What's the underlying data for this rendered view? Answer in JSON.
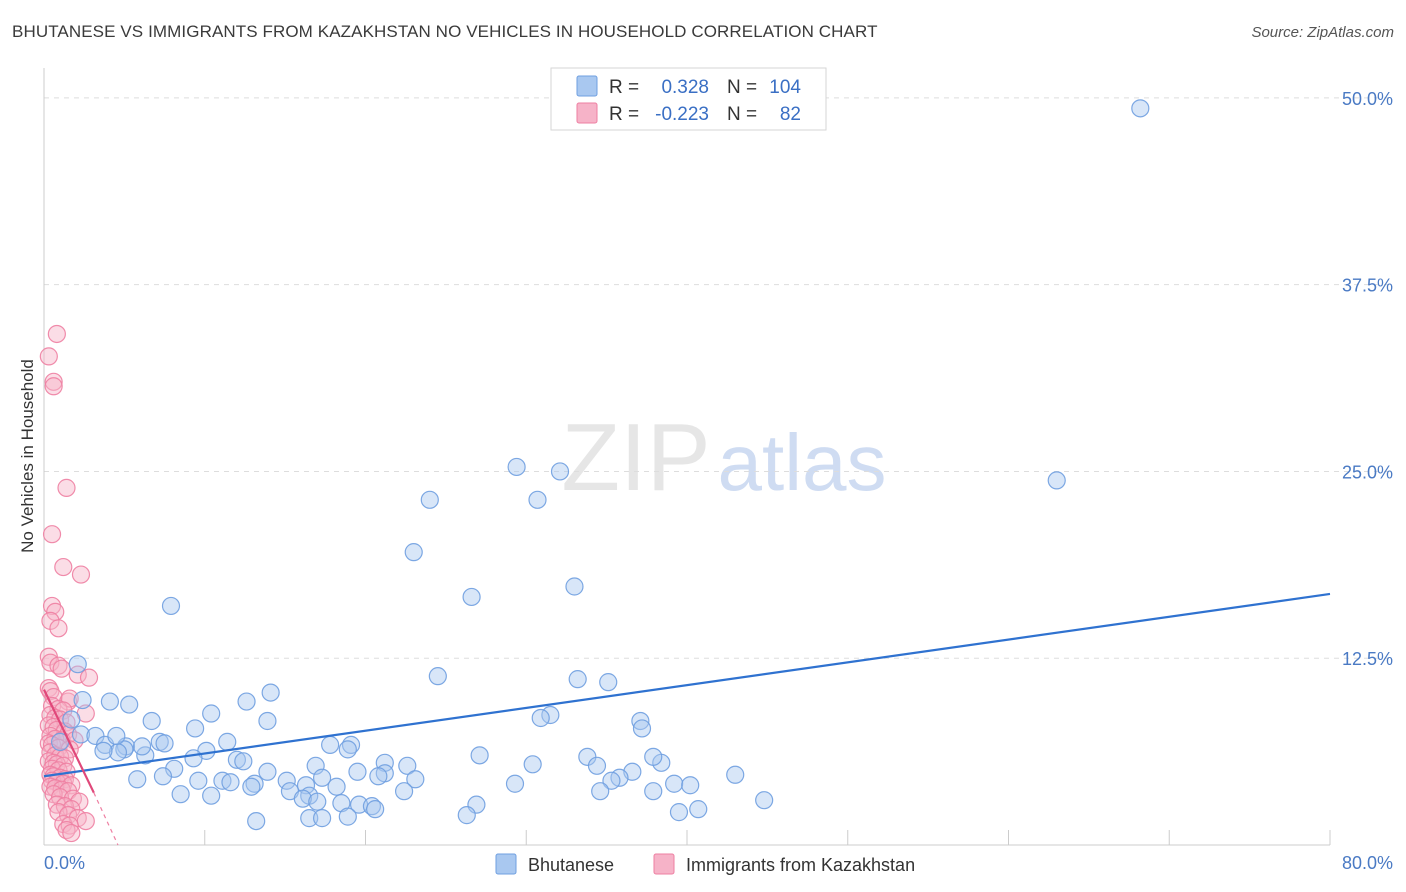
{
  "title": "BHUTANESE VS IMMIGRANTS FROM KAZAKHSTAN NO VEHICLES IN HOUSEHOLD CORRELATION CHART",
  "source": "Source: ZipAtlas.com",
  "watermark": {
    "zip": "ZIP",
    "atlas": "atlas"
  },
  "colors": {
    "blue_fill": "#a9c8f0",
    "blue_stroke": "#6f9fe0",
    "blue_line": "#2f72d0",
    "pink_fill": "#f6b3c8",
    "pink_stroke": "#ee7fa2",
    "pink_line": "#e0487a",
    "grid": "#dddddd",
    "tick_text": "#4a7ac4"
  },
  "legend": {
    "rows": [
      {
        "r_label": "R =",
        "r_value": "0.328",
        "n_label": "N =",
        "n_value": "104"
      },
      {
        "r_label": "R =",
        "r_value": "-0.223",
        "n_label": "N =",
        "n_value": "82"
      }
    ]
  },
  "chart_data": {
    "type": "scatter",
    "title": "BHUTANESE VS IMMIGRANTS FROM KAZAKHSTAN NO VEHICLES IN HOUSEHOLD CORRELATION CHART",
    "xlabel": "",
    "ylabel": "No Vehicles in Household",
    "xlim": [
      0,
      80
    ],
    "ylim": [
      0,
      52
    ],
    "x_tick_labels": [
      "0.0%",
      "80.0%"
    ],
    "y_ticks": [
      12.5,
      25.0,
      37.5,
      50.0
    ],
    "y_tick_labels": [
      "12.5%",
      "25.0%",
      "37.5%",
      "50.0%"
    ],
    "grid": true,
    "series": [
      {
        "name": "Bhutanese",
        "R": 0.328,
        "N": 104,
        "trend": {
          "x": [
            0,
            80
          ],
          "y": [
            4.6,
            16.8
          ]
        },
        "points": [
          [
            68.2,
            49.3
          ],
          [
            63.0,
            24.4
          ],
          [
            29.4,
            25.3
          ],
          [
            30.7,
            23.1
          ],
          [
            32.1,
            25.0
          ],
          [
            24.0,
            23.1
          ],
          [
            23.0,
            19.6
          ],
          [
            33.0,
            17.3
          ],
          [
            26.6,
            16.6
          ],
          [
            7.9,
            16.0
          ],
          [
            24.5,
            11.3
          ],
          [
            33.2,
            11.1
          ],
          [
            35.1,
            10.9
          ],
          [
            2.1,
            12.1
          ],
          [
            14.1,
            10.2
          ],
          [
            2.4,
            9.7
          ],
          [
            4.1,
            9.6
          ],
          [
            5.3,
            9.4
          ],
          [
            12.6,
            9.6
          ],
          [
            10.4,
            8.8
          ],
          [
            31.5,
            8.7
          ],
          [
            30.9,
            8.5
          ],
          [
            6.7,
            8.3
          ],
          [
            13.9,
            8.3
          ],
          [
            37.1,
            8.3
          ],
          [
            37.2,
            7.8
          ],
          [
            1.7,
            8.4
          ],
          [
            9.4,
            7.8
          ],
          [
            2.3,
            7.4
          ],
          [
            3.2,
            7.3
          ],
          [
            1.0,
            6.9
          ],
          [
            3.8,
            6.7
          ],
          [
            5.1,
            6.6
          ],
          [
            7.2,
            6.9
          ],
          [
            7.5,
            6.8
          ],
          [
            11.4,
            6.9
          ],
          [
            17.8,
            6.7
          ],
          [
            19.1,
            6.7
          ],
          [
            18.9,
            6.4
          ],
          [
            10.1,
            6.3
          ],
          [
            5.0,
            6.4
          ],
          [
            4.6,
            6.2
          ],
          [
            6.3,
            6.0
          ],
          [
            9.3,
            5.8
          ],
          [
            12.0,
            5.7
          ],
          [
            12.4,
            5.6
          ],
          [
            27.1,
            6.0
          ],
          [
            33.8,
            5.9
          ],
          [
            34.4,
            5.3
          ],
          [
            38.4,
            5.5
          ],
          [
            37.9,
            5.9
          ],
          [
            30.4,
            5.4
          ],
          [
            16.9,
            5.3
          ],
          [
            21.2,
            5.5
          ],
          [
            22.6,
            5.3
          ],
          [
            8.1,
            5.1
          ],
          [
            13.9,
            4.9
          ],
          [
            19.5,
            4.9
          ],
          [
            21.2,
            4.8
          ],
          [
            36.6,
            4.9
          ],
          [
            43.0,
            4.7
          ],
          [
            7.4,
            4.6
          ],
          [
            5.8,
            4.4
          ],
          [
            11.1,
            4.3
          ],
          [
            15.1,
            4.3
          ],
          [
            11.6,
            4.2
          ],
          [
            17.3,
            4.5
          ],
          [
            20.8,
            4.6
          ],
          [
            23.1,
            4.4
          ],
          [
            35.8,
            4.5
          ],
          [
            35.3,
            4.3
          ],
          [
            39.2,
            4.1
          ],
          [
            40.2,
            4.0
          ],
          [
            16.3,
            4.0
          ],
          [
            13.1,
            4.1
          ],
          [
            15.3,
            3.6
          ],
          [
            18.2,
            3.9
          ],
          [
            22.4,
            3.6
          ],
          [
            34.6,
            3.6
          ],
          [
            8.5,
            3.4
          ],
          [
            10.4,
            3.3
          ],
          [
            16.5,
            3.3
          ],
          [
            29.3,
            4.1
          ],
          [
            37.9,
            3.6
          ],
          [
            16.1,
            3.1
          ],
          [
            17.0,
            2.9
          ],
          [
            18.5,
            2.8
          ],
          [
            19.6,
            2.7
          ],
          [
            20.4,
            2.6
          ],
          [
            26.9,
            2.7
          ],
          [
            40.7,
            2.4
          ],
          [
            44.8,
            3.0
          ],
          [
            39.5,
            2.2
          ],
          [
            26.3,
            2.0
          ],
          [
            16.5,
            1.8
          ],
          [
            17.3,
            1.8
          ],
          [
            13.2,
            1.6
          ],
          [
            18.9,
            1.9
          ],
          [
            20.6,
            2.4
          ],
          [
            12.9,
            3.9
          ],
          [
            9.6,
            4.3
          ],
          [
            4.5,
            7.3
          ],
          [
            6.1,
            6.6
          ],
          [
            3.7,
            6.3
          ]
        ]
      },
      {
        "name": "Immigrants from Kazakhstan",
        "R": -0.223,
        "N": 82,
        "trend": {
          "x": [
            0,
            3.1
          ],
          "y": [
            10.4,
            3.5
          ]
        },
        "trend_dashed": {
          "x": [
            3.1,
            4.6
          ],
          "y": [
            3.5,
            0.0
          ]
        },
        "points": [
          [
            0.8,
            34.2
          ],
          [
            0.3,
            32.7
          ],
          [
            0.6,
            31.0
          ],
          [
            0.6,
            30.7
          ],
          [
            1.4,
            23.9
          ],
          [
            0.5,
            20.8
          ],
          [
            1.2,
            18.6
          ],
          [
            2.3,
            18.1
          ],
          [
            0.5,
            16.0
          ],
          [
            0.7,
            15.6
          ],
          [
            0.4,
            15.0
          ],
          [
            0.9,
            14.5
          ],
          [
            0.3,
            12.6
          ],
          [
            0.4,
            12.2
          ],
          [
            0.9,
            12.0
          ],
          [
            1.1,
            11.8
          ],
          [
            2.1,
            11.4
          ],
          [
            2.8,
            11.2
          ],
          [
            0.3,
            10.5
          ],
          [
            0.4,
            10.3
          ],
          [
            0.6,
            9.9
          ],
          [
            1.5,
            9.6
          ],
          [
            1.6,
            9.8
          ],
          [
            0.5,
            9.3
          ],
          [
            0.9,
            9.1
          ],
          [
            1.2,
            9.0
          ],
          [
            2.6,
            8.8
          ],
          [
            0.4,
            8.7
          ],
          [
            0.7,
            8.5
          ],
          [
            1.0,
            8.4
          ],
          [
            1.4,
            8.2
          ],
          [
            0.3,
            8.0
          ],
          [
            0.6,
            7.9
          ],
          [
            0.8,
            7.7
          ],
          [
            1.3,
            7.6
          ],
          [
            1.5,
            7.4
          ],
          [
            0.4,
            7.3
          ],
          [
            0.7,
            7.1
          ],
          [
            1.1,
            7.0
          ],
          [
            1.9,
            7.0
          ],
          [
            0.3,
            6.8
          ],
          [
            0.5,
            6.7
          ],
          [
            0.9,
            6.5
          ],
          [
            1.6,
            6.4
          ],
          [
            0.4,
            6.2
          ],
          [
            0.7,
            6.0
          ],
          [
            1.0,
            5.9
          ],
          [
            1.3,
            5.8
          ],
          [
            0.3,
            5.6
          ],
          [
            0.6,
            5.5
          ],
          [
            0.8,
            5.4
          ],
          [
            1.2,
            5.3
          ],
          [
            0.5,
            5.1
          ],
          [
            0.9,
            5.0
          ],
          [
            1.4,
            4.9
          ],
          [
            0.4,
            4.7
          ],
          [
            0.6,
            4.6
          ],
          [
            1.0,
            4.5
          ],
          [
            1.3,
            4.4
          ],
          [
            0.5,
            4.3
          ],
          [
            0.8,
            4.2
          ],
          [
            1.2,
            4.1
          ],
          [
            1.7,
            4.0
          ],
          [
            0.4,
            3.9
          ],
          [
            0.7,
            3.8
          ],
          [
            1.1,
            3.7
          ],
          [
            1.5,
            3.6
          ],
          [
            0.6,
            3.4
          ],
          [
            1.0,
            3.2
          ],
          [
            1.8,
            3.1
          ],
          [
            2.2,
            2.9
          ],
          [
            0.8,
            2.7
          ],
          [
            1.3,
            2.6
          ],
          [
            1.7,
            2.4
          ],
          [
            0.9,
            2.2
          ],
          [
            1.5,
            2.0
          ],
          [
            2.1,
            1.8
          ],
          [
            2.6,
            1.6
          ],
          [
            1.2,
            1.4
          ],
          [
            1.6,
            1.3
          ],
          [
            1.4,
            1.0
          ],
          [
            1.7,
            0.8
          ]
        ]
      }
    ]
  }
}
